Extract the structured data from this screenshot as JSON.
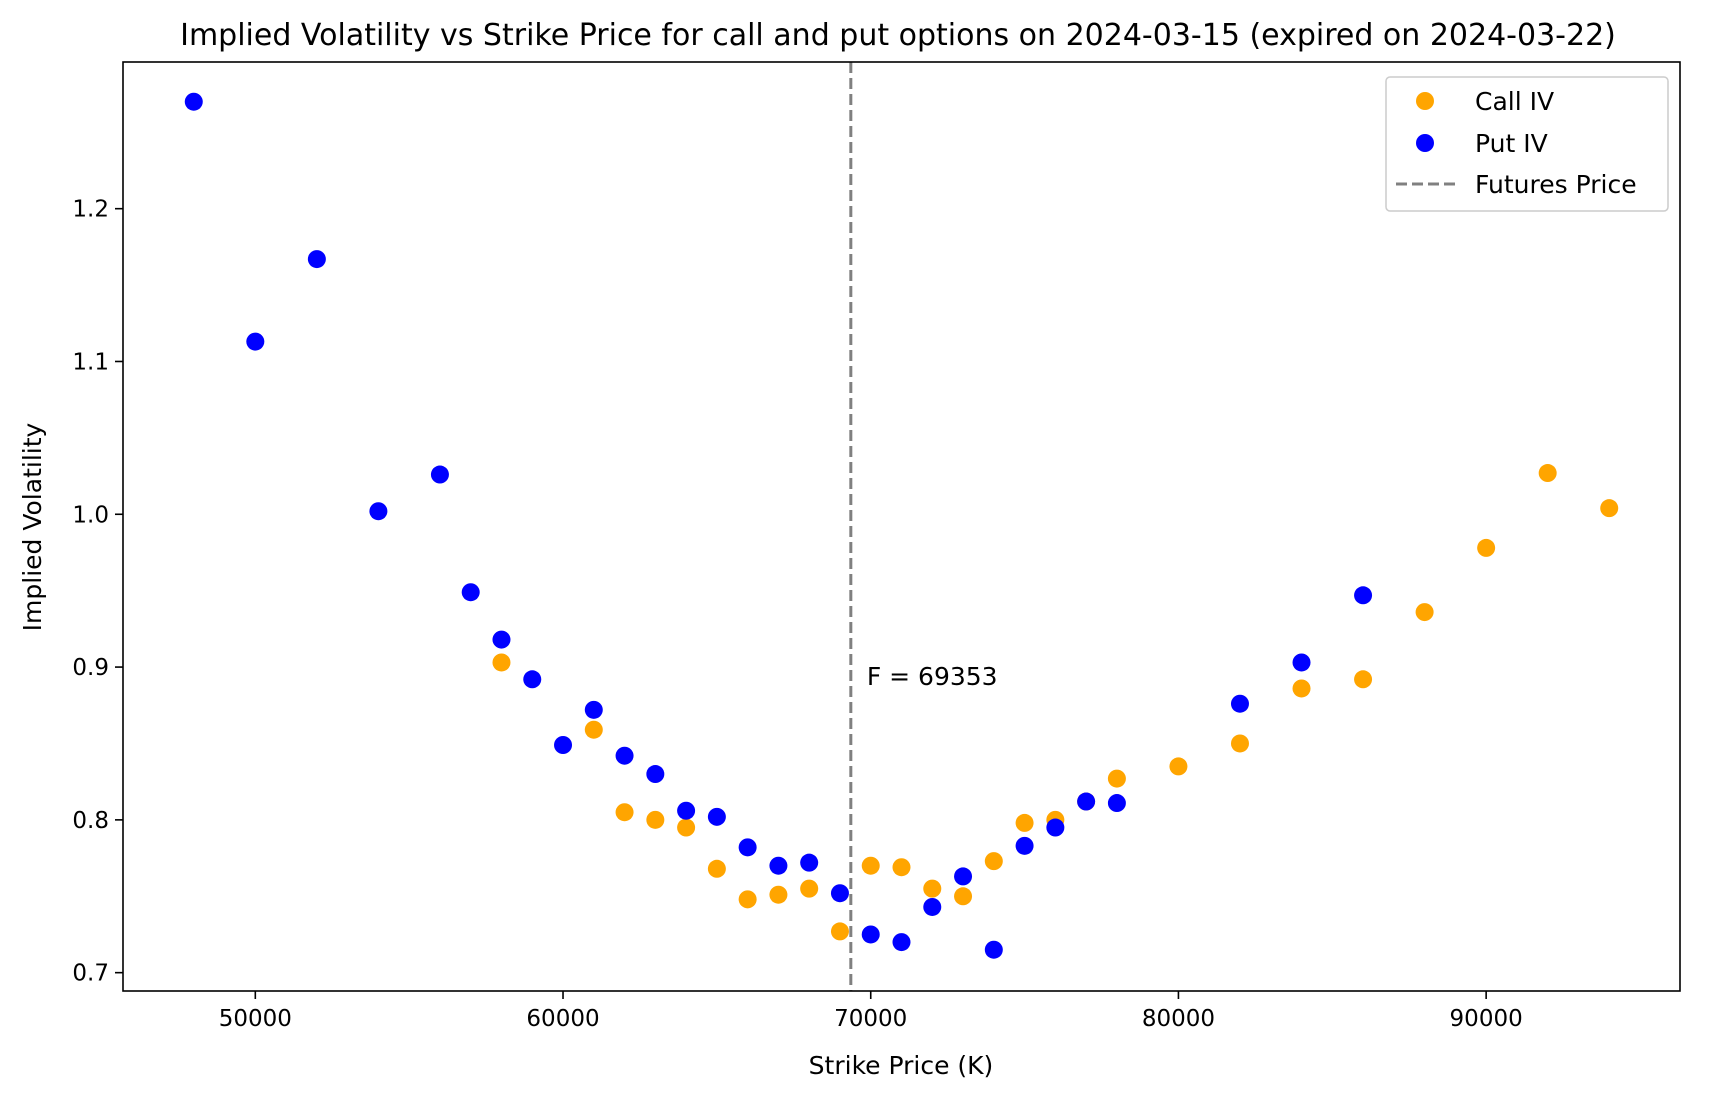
{
  "chart_data": {
    "type": "scatter",
    "title": "Implied Volatility vs Strike Price for call and put options on 2024-03-15 (expired on 2024-03-22)",
    "xlabel": "Strike Price (K)",
    "ylabel": "Implied Volatility",
    "xlim": [
      45700,
      96300
    ],
    "ylim": [
      0.688,
      1.296
    ],
    "xticks": [
      50000,
      60000,
      70000,
      80000,
      90000
    ],
    "yticks": [
      0.7,
      0.8,
      0.9,
      1.0,
      1.1,
      1.2
    ],
    "xtick_labels": [
      "50000",
      "60000",
      "70000",
      "80000",
      "90000"
    ],
    "ytick_labels": [
      "0.7",
      "0.8",
      "0.9",
      "1.0",
      "1.1",
      "1.2"
    ],
    "grid": false,
    "legend_position": "top-right",
    "series": [
      {
        "name": "Call IV",
        "color": "#ffa500",
        "marker": "circle",
        "x": [
          58000,
          61000,
          62000,
          63000,
          64000,
          65000,
          66000,
          67000,
          68000,
          69000,
          70000,
          71000,
          72000,
          73000,
          74000,
          75000,
          76000,
          77000,
          78000,
          80000,
          82000,
          84000,
          86000,
          88000,
          90000,
          92000,
          94000
        ],
        "y": [
          0.903,
          0.859,
          0.805,
          0.8,
          0.795,
          0.768,
          0.748,
          0.751,
          0.755,
          0.727,
          0.77,
          0.769,
          0.755,
          0.75,
          0.773,
          0.798,
          0.8,
          0.812,
          0.827,
          0.835,
          0.85,
          0.886,
          0.892,
          0.936,
          0.978,
          1.027,
          1.004
        ]
      },
      {
        "name": "Put IV",
        "color": "#0000ff",
        "marker": "circle",
        "x": [
          48000,
          50000,
          52000,
          54000,
          56000,
          57000,
          58000,
          59000,
          60000,
          61000,
          62000,
          63000,
          64000,
          65000,
          66000,
          67000,
          68000,
          69000,
          70000,
          71000,
          72000,
          73000,
          74000,
          75000,
          76000,
          77000,
          78000,
          82000,
          84000,
          86000
        ],
        "y": [
          1.27,
          1.113,
          1.167,
          1.002,
          1.026,
          0.949,
          0.918,
          0.892,
          0.849,
          0.872,
          0.842,
          0.83,
          0.806,
          0.802,
          0.782,
          0.77,
          0.772,
          0.752,
          0.725,
          0.72,
          0.743,
          0.763,
          0.715,
          0.783,
          0.795,
          0.812,
          0.811,
          0.876,
          0.903,
          0.947
        ]
      }
    ],
    "reference_line": {
      "name": "Futures Price",
      "x": 69353,
      "color": "#808080",
      "style": "dashed",
      "annotation": "F = 69353"
    }
  }
}
